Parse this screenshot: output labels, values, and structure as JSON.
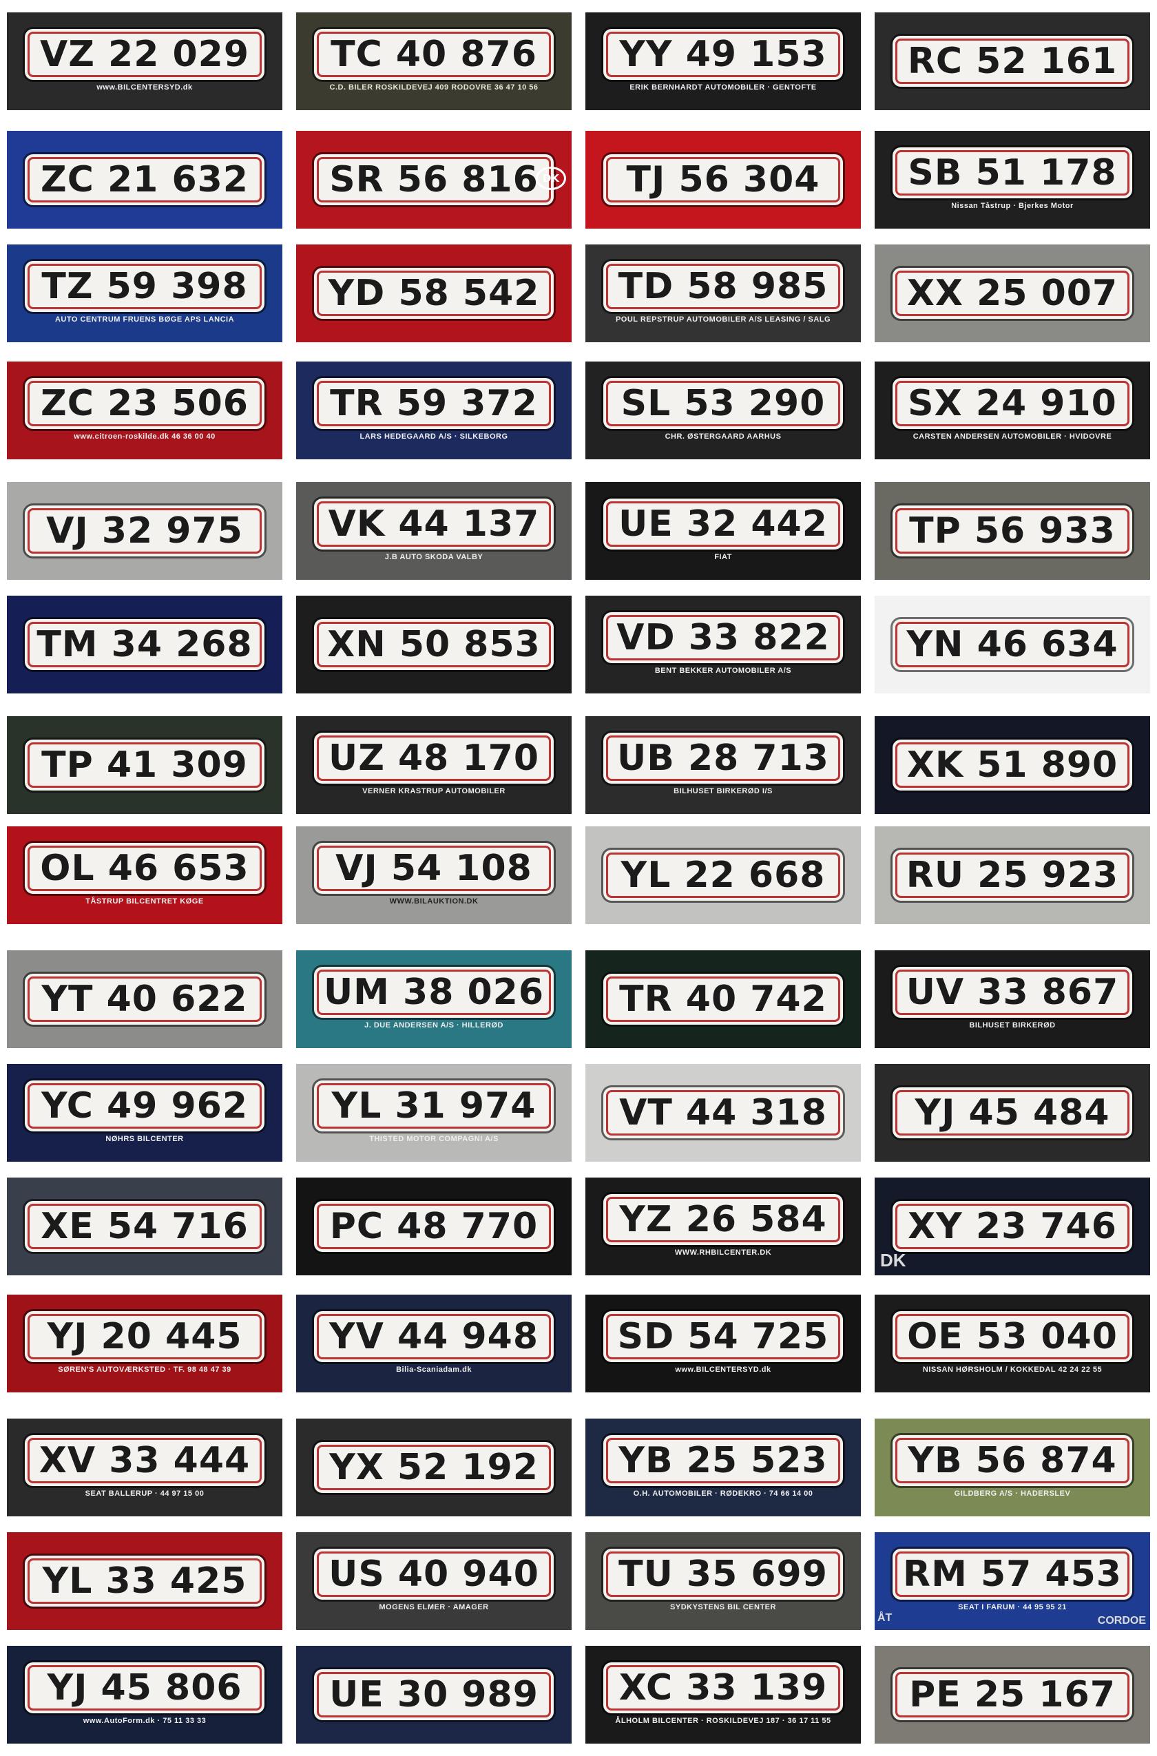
{
  "plates": [
    {
      "text": "VZ 22 029",
      "dealer": "www.BILCENTERSYD.dk",
      "bg": "#2a2a2a",
      "dealer_color": "#eeeeee"
    },
    {
      "text": "TC 40 876",
      "dealer": "C.D. BILER  ROSKILDEVEJ 409  RODOVRE  36 47 10 56",
      "bg": "#3b3c2f",
      "dealer_color": "#e6e6d6"
    },
    {
      "text": "YY 49 153",
      "dealer": "ERIK BERNHARDT AUTOMOBILER · GENTOFTE",
      "bg": "#1d1d1d",
      "dealer_color": "#eeeeee"
    },
    {
      "text": "RC 52 161",
      "dealer": "",
      "bg": "#2b2b2b",
      "dealer_color": "#eeeeee"
    },
    {
      "text": "ZC 21 632",
      "dealer": "",
      "bg": "#1f3b96",
      "dealer_color": "#eeeeee"
    },
    {
      "text": "SR 56 816",
      "dealer": "",
      "bg": "#b5161e",
      "dealer_color": "#eeeeee"
    },
    {
      "text": "TJ 56 304",
      "dealer": "",
      "bg": "#c4161c",
      "dealer_color": "#eeeeee"
    },
    {
      "text": "SB 51 178",
      "dealer": "Nissan Tåstrup · Bjerkes Motor",
      "bg": "#202020",
      "dealer_color": "#eeeeee"
    },
    {
      "text": "TZ 59 398",
      "dealer": "AUTO CENTRUM FRUENS BØGE APS  LANCIA",
      "bg": "#1b3a8a",
      "dealer_color": "#eeeeee"
    },
    {
      "text": "YD 58 542",
      "dealer": "",
      "bg": "#b1141b",
      "dealer_color": "#eeeeee"
    },
    {
      "text": "TD 58 985",
      "dealer": "POUL REPSTRUP AUTOMOBILER A/S  LEASING / SALG",
      "bg": "#333333",
      "dealer_color": "#eeeeee"
    },
    {
      "text": "XX 25 007",
      "dealer": "",
      "bg": "#8a8a86",
      "dealer_color": "#eeeeee"
    },
    {
      "text": "ZC 23 506",
      "dealer": "www.citroen-roskilde.dk  46 36 00 40",
      "bg": "#a8141b",
      "dealer_color": "#eeeeee"
    },
    {
      "text": "TR 59 372",
      "dealer": "LARS HEDEGAARD A/S · SILKEBORG",
      "bg": "#1c2a5e",
      "dealer_color": "#eeeeee"
    },
    {
      "text": "SL 53 290",
      "dealer": "CHR. ØSTERGAARD AARHUS",
      "bg": "#222222",
      "dealer_color": "#eeeeee"
    },
    {
      "text": "SX 24 910",
      "dealer": "CARSTEN ANDERSEN AUTOMOBILER · HVIDOVRE",
      "bg": "#1e1e1e",
      "dealer_color": "#eeeeee"
    },
    {
      "text": "VJ 32 975",
      "dealer": "",
      "bg": "#a9a9a7",
      "dealer_color": "#cc2222"
    },
    {
      "text": "VK 44 137",
      "dealer": "J.B AUTO  SKODA VALBY",
      "bg": "#5a5a58",
      "dealer_color": "#eeeeee"
    },
    {
      "text": "UE 32 442",
      "dealer": "FIAT",
      "bg": "#181818",
      "dealer_color": "#eeeeee"
    },
    {
      "text": "TP 56 933",
      "dealer": "",
      "bg": "#6a6a62",
      "dealer_color": "#eeeeee"
    },
    {
      "text": "TM 34 268",
      "dealer": "",
      "bg": "#161f55",
      "dealer_color": "#eeeeee"
    },
    {
      "text": "XN 50 853",
      "dealer": "",
      "bg": "#1d1d1d",
      "dealer_color": "#eeeeee"
    },
    {
      "text": "VD 33 822",
      "dealer": "BENT BEKKER AUTOMOBILER A/S",
      "bg": "#242424",
      "dealer_color": "#eeeeee"
    },
    {
      "text": "YN 46 634",
      "dealer": "",
      "bg": "#f2f2f2",
      "dealer_color": "#333333"
    },
    {
      "text": "TP 41 309",
      "dealer": "",
      "bg": "#2a332a",
      "dealer_color": "#eeeeee"
    },
    {
      "text": "UZ 48 170",
      "dealer": "VERNER KRASTRUP AUTOMOBILER",
      "bg": "#262626",
      "dealer_color": "#eeeeee"
    },
    {
      "text": "UB 28 713",
      "dealer": "BILHUSET BIRKERØD I/S",
      "bg": "#2c2c2c",
      "dealer_color": "#eeeeee"
    },
    {
      "text": "XK 51 890",
      "dealer": "",
      "bg": "#141826",
      "dealer_color": "#eeeeee"
    },
    {
      "text": "OL 46 653",
      "dealer": "TÅSTRUP  BILCENTRET  KØGE",
      "bg": "#b3121a",
      "dealer_color": "#eeeeee"
    },
    {
      "text": "VJ 54 108",
      "dealer": "WWW.BILAUKTION.DK",
      "bg": "#9a9a98",
      "dealer_color": "#222222"
    },
    {
      "text": "YL 22 668",
      "dealer": "",
      "bg": "#c2c2c0",
      "dealer_color": "#222222"
    },
    {
      "text": "RU 25 923",
      "dealer": "",
      "bg": "#b7b7b3",
      "dealer_color": "#222222"
    },
    {
      "text": "YT 40 622",
      "dealer": "",
      "bg": "#8c8c8a",
      "dealer_color": "#222222"
    },
    {
      "text": "UM 38 026",
      "dealer": "J. DUE ANDERSEN A/S · HILLERØD",
      "bg": "#2a7884",
      "dealer_color": "#eeeeee"
    },
    {
      "text": "TR 40 742",
      "dealer": "",
      "bg": "#16241e",
      "dealer_color": "#eeeeee"
    },
    {
      "text": "UV 33 867",
      "dealer": "BILHUSET BIRKERØD",
      "bg": "#1b1b1b",
      "dealer_color": "#eeeeee"
    },
    {
      "text": "YC 49 962",
      "dealer": "NØHRS BILCENTER",
      "bg": "#17204a",
      "dealer_color": "#eeeeee"
    },
    {
      "text": "YL 31 974",
      "dealer": "THISTED MOTOR COMPAGNI A/S",
      "bg": "#b9b9b7",
      "dealer_color": "#eeeeee"
    },
    {
      "text": "VT 44 318",
      "dealer": "",
      "bg": "#cfcfcd",
      "dealer_color": "#222222"
    },
    {
      "text": "YJ 45 484",
      "dealer": "",
      "bg": "#2a2a2a",
      "dealer_color": "#eeeeee"
    },
    {
      "text": "XE 54 716",
      "dealer": "",
      "bg": "#3a3f4c",
      "dealer_color": "#eeeeee"
    },
    {
      "text": "PC 48 770",
      "dealer": "",
      "bg": "#141414",
      "dealer_color": "#eeeeee"
    },
    {
      "text": "YZ 26 584",
      "dealer": "WWW.RHBILCENTER.DK",
      "bg": "#1a1a1a",
      "dealer_color": "#eeeeee"
    },
    {
      "text": "XY 23 746",
      "dealer": "",
      "bg": "#141a2a",
      "dealer_color": "#eeeeee"
    },
    {
      "text": "YJ 20 445",
      "dealer": "SØREN'S AUTOVÆRKSTED · TF. 98 48 47 39",
      "bg": "#9e1218",
      "dealer_color": "#eeeeee"
    },
    {
      "text": "YV 44 948",
      "dealer": "Bilia-Scaniadam.dk",
      "bg": "#1b2440",
      "dealer_color": "#eeeeee"
    },
    {
      "text": "SD 54 725",
      "dealer": "www.BILCENTERSYD.dk",
      "bg": "#141414",
      "dealer_color": "#eeeeee"
    },
    {
      "text": "OE 53 040",
      "dealer": "NISSAN  HØRSHOLM / KOKKEDAL  42 24 22 55",
      "bg": "#1c1c1c",
      "dealer_color": "#eeeeee"
    },
    {
      "text": "XV 33 444",
      "dealer": "SEAT BALLERUP · 44 97 15 00",
      "bg": "#2a2a2a",
      "dealer_color": "#eeeeee"
    },
    {
      "text": "YX 52 192",
      "dealer": "",
      "bg": "#2b2b2b",
      "dealer_color": "#eeeeee"
    },
    {
      "text": "YB 25 523",
      "dealer": "O.H. AUTOMOBILER · RØDEKRO · 74 66 14 00",
      "bg": "#1e2a44",
      "dealer_color": "#eeeeee"
    },
    {
      "text": "YB 56 874",
      "dealer": "GILDBERG A/S · HADERSLEV",
      "bg": "#7c8a55",
      "dealer_color": "#eeeeee"
    },
    {
      "text": "YL 33 425",
      "dealer": "",
      "bg": "#a8141b",
      "dealer_color": "#eeeeee"
    },
    {
      "text": "US 40 940",
      "dealer": "MOGENS ELMER · AMAGER",
      "bg": "#3a3a3a",
      "dealer_color": "#eeeeee"
    },
    {
      "text": "TU 35 699",
      "dealer": "SYDKYSTENS BIL CENTER",
      "bg": "#4a4a46",
      "dealer_color": "#eeeeee"
    },
    {
      "text": "RM 57 453",
      "dealer": "SEAT I FARUM · 44 95 95 21",
      "bg": "#1d3c92",
      "dealer_color": "#eeeeee"
    },
    {
      "text": "YJ 45 806",
      "dealer": "www.AutoForm.dk · 75 11 33 33",
      "bg": "#17203a",
      "dealer_color": "#eeeeee"
    },
    {
      "text": "UE 30 989",
      "dealer": "",
      "bg": "#1c2748",
      "dealer_color": "#eeeeee"
    },
    {
      "text": "XC 33 139",
      "dealer": "ÅLHOLM BILCENTER · ROSKILDEVEJ 187 · 36 17 11 55",
      "bg": "#1a1a1a",
      "dealer_color": "#eeeeee"
    },
    {
      "text": "PE 25 167",
      "dealer": "",
      "bg": "#7d7b74",
      "dealer_color": "#eeeeee"
    }
  ],
  "extra_marks": {
    "dk_oval": "DK",
    "dk_corner": "DK",
    "cordoba": "CORDOE",
    "cut_corner": "ÅT"
  }
}
